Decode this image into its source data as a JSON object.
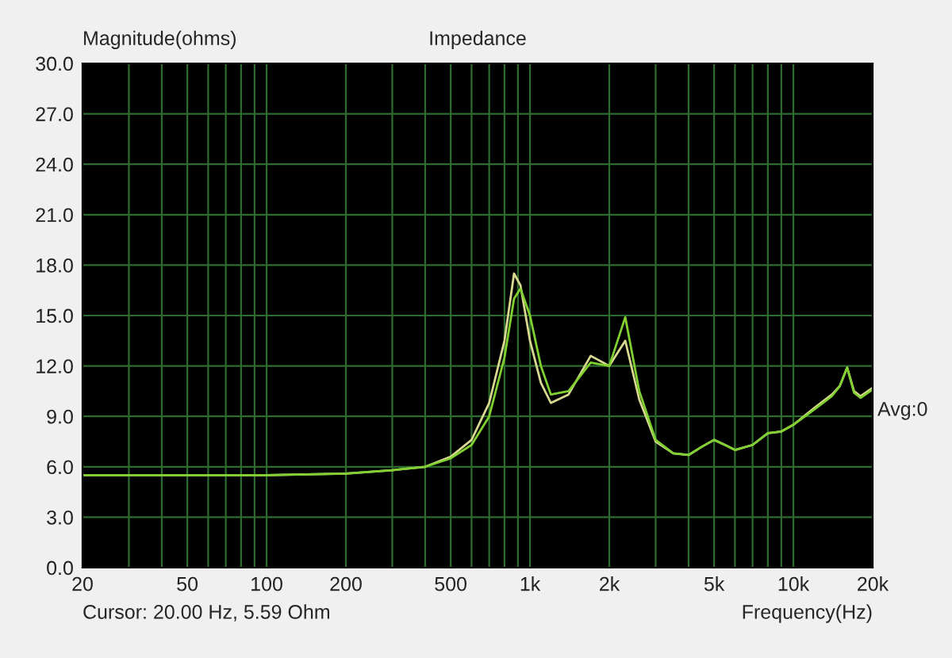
{
  "chart_data": {
    "type": "line",
    "title": "Impedance",
    "ylabel": "Magnitude(ohms)",
    "xlabel": "Frequency(Hz)",
    "annotations": [
      "Avg:0",
      "Cursor: 20.00 Hz, 5.59 Ohm"
    ],
    "log": "x",
    "grid": true,
    "legend": false,
    "marker": "none",
    "line_style": "solid",
    "xlim": [
      20,
      20000
    ],
    "ylim": [
      0,
      30
    ],
    "xticks": [
      20,
      {
        "value": 30,
        "label": null
      },
      {
        "value": 40,
        "label": null
      },
      50,
      {
        "value": 60,
        "label": null
      },
      {
        "value": 70,
        "label": null
      },
      {
        "value": 80,
        "label": null
      },
      {
        "value": 90,
        "label": null
      },
      100,
      200,
      {
        "value": 300,
        "label": null
      },
      {
        "value": 400,
        "label": null
      },
      500,
      {
        "value": 600,
        "label": null
      },
      {
        "value": 700,
        "label": null
      },
      {
        "value": 800,
        "label": null
      },
      {
        "value": 900,
        "label": null
      },
      {
        "value": 1000,
        "label": "1k"
      },
      {
        "value": 2000,
        "label": "2k"
      },
      {
        "value": 3000,
        "label": null
      },
      {
        "value": 4000,
        "label": null
      },
      {
        "value": 5000,
        "label": "5k"
      },
      {
        "value": 6000,
        "label": null
      },
      {
        "value": 7000,
        "label": null
      },
      {
        "value": 8000,
        "label": null
      },
      {
        "value": 9000,
        "label": null
      },
      {
        "value": 10000,
        "label": "10k"
      },
      {
        "value": 20000,
        "label": "20k"
      }
    ],
    "yticks": [
      {
        "value": 0,
        "label": "0.0"
      },
      {
        "value": 3,
        "label": "3.0"
      },
      {
        "value": 6,
        "label": "6.0"
      },
      {
        "value": 9,
        "label": "9.0"
      },
      {
        "value": 12,
        "label": "12.0"
      },
      {
        "value": 15,
        "label": "15.0"
      },
      {
        "value": 18,
        "label": "18.0"
      },
      {
        "value": 21,
        "label": "21.0"
      },
      {
        "value": 24,
        "label": "24.0"
      },
      {
        "value": 27,
        "label": "27.0"
      },
      {
        "value": 30,
        "label": "30.0"
      }
    ],
    "x": [
      20,
      50,
      100,
      200,
      300,
      400,
      500,
      600,
      700,
      800,
      870,
      920,
      1000,
      1100,
      1200,
      1400,
      1700,
      2000,
      2300,
      2600,
      3000,
      3500,
      4000,
      4500,
      5000,
      5500,
      6000,
      7000,
      8000,
      9000,
      10000,
      12000,
      14000,
      15000,
      16000,
      17000,
      18000,
      20000
    ],
    "series": [
      {
        "color": "#d8d890",
        "values": [
          5.5,
          5.5,
          5.5,
          5.6,
          5.8,
          6.0,
          6.6,
          7.6,
          9.8,
          13.5,
          17.5,
          16.8,
          13.5,
          11.0,
          9.8,
          10.3,
          12.6,
          12.0,
          13.5,
          10.0,
          7.5,
          6.8,
          6.7,
          7.2,
          7.6,
          7.3,
          7.0,
          7.3,
          8.0,
          8.1,
          8.5,
          9.5,
          10.3,
          10.8,
          11.9,
          10.5,
          10.2,
          10.7
        ]
      },
      {
        "color": "#80d030",
        "values": [
          5.5,
          5.5,
          5.5,
          5.6,
          5.8,
          6.0,
          6.5,
          7.3,
          9.0,
          12.5,
          16.0,
          16.6,
          15.0,
          12.0,
          10.3,
          10.5,
          12.2,
          12.0,
          14.9,
          10.5,
          7.6,
          6.8,
          6.7,
          7.2,
          7.6,
          7.3,
          7.0,
          7.3,
          8.0,
          8.1,
          8.5,
          9.4,
          10.2,
          10.8,
          11.9,
          10.4,
          10.1,
          10.6
        ]
      }
    ]
  }
}
